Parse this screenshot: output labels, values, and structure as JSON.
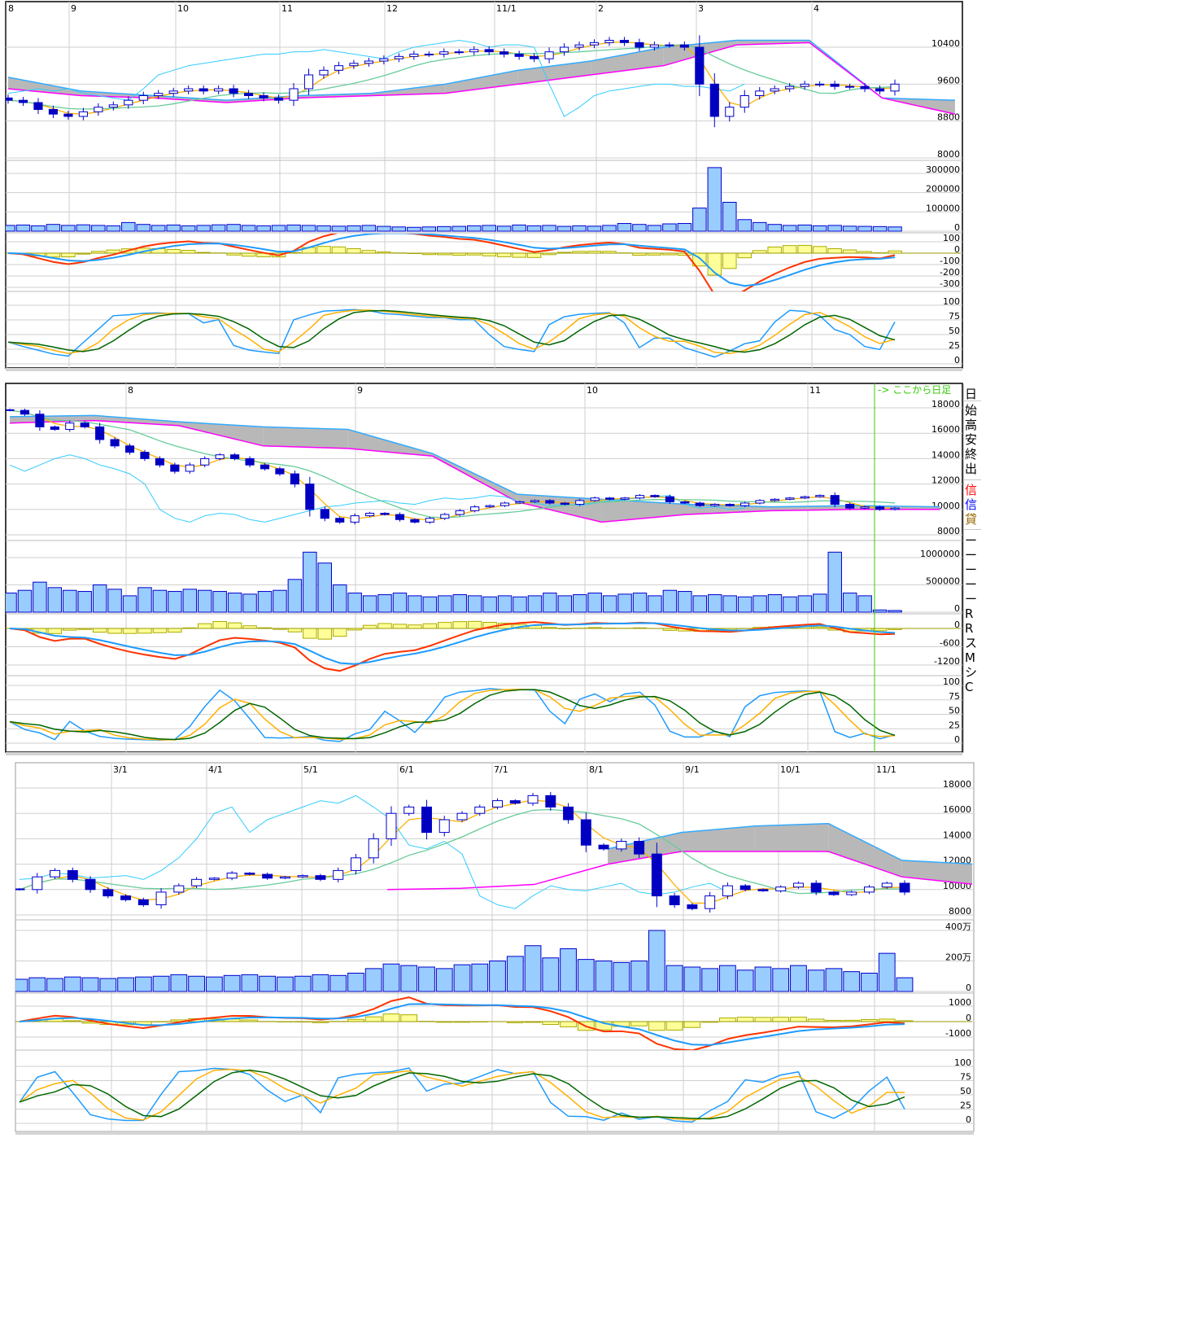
{
  "chart_data": [
    {
      "type": "candlestick",
      "x_labels": [
        "8",
        "9",
        "10",
        "11",
        "12",
        "11/1",
        "2",
        "3",
        "4"
      ],
      "y_ticks": {
        "price": [
          "10400",
          "9600",
          "8800",
          "8000"
        ],
        "volume": [
          "300000",
          "200000",
          "100000",
          "0"
        ],
        "macd": [
          "100",
          "0",
          "-100",
          "-200",
          "-300"
        ],
        "stoch": [
          "100",
          "75",
          "50",
          "25",
          "0"
        ]
      },
      "close": [
        9250,
        9200,
        9050,
        8950,
        8900,
        9000,
        9100,
        9150,
        9250,
        9350,
        9400,
        9450,
        9500,
        9450,
        9500,
        9400,
        9350,
        9300,
        9250,
        9500,
        9800,
        9900,
        10000,
        10050,
        10100,
        10150,
        10200,
        10250,
        10250,
        10300,
        10300,
        10350,
        10300,
        10250,
        10200,
        10150,
        10300,
        10400,
        10450,
        10500,
        10550,
        10500,
        10400,
        10450,
        10450,
        10400,
        9600,
        8900,
        9100,
        9350,
        9450,
        9500,
        9550,
        9600,
        9600,
        9550,
        9550,
        9500,
        9450,
        9600
      ],
      "volume": [
        30000,
        32000,
        28000,
        35000,
        30000,
        33000,
        30000,
        28000,
        45000,
        35000,
        30000,
        32000,
        28000,
        30000,
        33000,
        35000,
        30000,
        28000,
        30000,
        32000,
        30000,
        28000,
        26000,
        28000,
        30000,
        25000,
        22000,
        20000,
        22000,
        24000,
        25000,
        28000,
        30000,
        26000,
        32000,
        28000,
        30000,
        25000,
        28000,
        26000,
        30000,
        40000,
        35000,
        30000,
        38000,
        40000,
        120000,
        330000,
        150000,
        60000,
        45000,
        35000,
        30000,
        32000,
        28000,
        30000,
        26000,
        25000,
        24000,
        22000
      ],
      "cloud_span_a": [
        9750,
        9450,
        9350,
        9250,
        9350,
        9400,
        9600,
        9900,
        10100,
        10400,
        10550,
        10550,
        9300,
        9250
      ],
      "cloud_span_b": [
        9500,
        9350,
        9300,
        9200,
        9300,
        9350,
        9400,
        9600,
        9800,
        10000,
        10450,
        10500,
        9300,
        8950
      ],
      "cloud_lead_periods": 4
    },
    {
      "type": "candlestick",
      "x_labels": [
        "8",
        "9",
        "10",
        "11"
      ],
      "y_ticks": {
        "price": [
          "18000",
          "16000",
          "14000",
          "12000",
          "10000",
          "8000"
        ],
        "volume": [
          "1000000",
          "500000",
          "0"
        ],
        "macd": [
          "0",
          "-600",
          "-1200"
        ],
        "stoch": [
          "100",
          "75",
          "50",
          "25",
          "0"
        ]
      },
      "close": [
        17800,
        17500,
        16500,
        16300,
        16800,
        16500,
        15500,
        15000,
        14500,
        14000,
        13500,
        13000,
        13500,
        14000,
        14300,
        14000,
        13500,
        13200,
        12800,
        12000,
        10000,
        9300,
        9000,
        9500,
        9700,
        9600,
        9200,
        9000,
        9300,
        9600,
        9900,
        10200,
        10300,
        10500,
        10600,
        10700,
        10500,
        10400,
        10700,
        10900,
        10800,
        10900,
        11100,
        11000,
        10600,
        10500,
        10300,
        10400,
        10300,
        10500,
        10700,
        10800,
        10900,
        11000,
        11100,
        10400,
        10100,
        10200,
        10000,
        10100
      ],
      "volume": [
        350000,
        400000,
        550000,
        450000,
        400000,
        380000,
        500000,
        420000,
        300000,
        450000,
        400000,
        380000,
        420000,
        400000,
        380000,
        350000,
        330000,
        380000,
        400000,
        600000,
        1100000,
        900000,
        500000,
        350000,
        300000,
        320000,
        350000,
        300000,
        280000,
        300000,
        320000,
        300000,
        280000,
        300000,
        280000,
        300000,
        350000,
        300000,
        320000,
        350000,
        300000,
        330000,
        350000,
        300000,
        400000,
        380000,
        300000,
        320000,
        300000,
        280000,
        300000,
        320000,
        280000,
        300000,
        330000,
        1100000,
        350000,
        300000,
        40000,
        30000
      ],
      "cloud_span_a": [
        17300,
        17400,
        16900,
        16500,
        16300,
        14400,
        11200,
        10800,
        10400,
        10200,
        10300,
        10200
      ],
      "cloud_span_b": [
        16800,
        17000,
        16600,
        15000,
        14800,
        14200,
        10600,
        9000,
        9600,
        9900,
        10000,
        10000
      ],
      "cloud_lead_periods": 3,
      "annotation": "-> ここから日足"
    },
    {
      "type": "candlestick",
      "x_labels": [
        "3/1",
        "4/1",
        "5/1",
        "6/1",
        "7/1",
        "8/1",
        "9/1",
        "10/1",
        "11/1"
      ],
      "y_ticks": {
        "price": [
          "18000",
          "16000",
          "14000",
          "12000",
          "10000",
          "8000"
        ],
        "volume": [
          "400万",
          "200万",
          "0"
        ],
        "macd": [
          "1000",
          "0",
          "-1000"
        ],
        "stoch": [
          "100",
          "75",
          "50",
          "25",
          "0"
        ]
      },
      "close": [
        10000,
        11000,
        11500,
        10800,
        10000,
        9500,
        9200,
        8800,
        9800,
        10300,
        10800,
        10900,
        11300,
        11200,
        10900,
        11000,
        11100,
        10800,
        11500,
        12500,
        14000,
        16000,
        16500,
        14500,
        15500,
        16000,
        16500,
        17000,
        16800,
        17400,
        16500,
        15500,
        13500,
        13200,
        13800,
        12800,
        9500,
        8800,
        8500,
        9500,
        10300,
        10000,
        9900,
        10200,
        10500,
        9800,
        9600,
        9800,
        10200,
        10500,
        9800
      ],
      "volume": [
        80,
        90,
        85,
        95,
        90,
        85,
        90,
        95,
        100,
        110,
        100,
        95,
        105,
        110,
        100,
        95,
        100,
        110,
        105,
        120,
        150,
        180,
        170,
        160,
        150,
        175,
        180,
        200,
        230,
        300,
        220,
        280,
        210,
        200,
        190,
        200,
        400,
        170,
        160,
        150,
        170,
        140,
        160,
        150,
        170,
        140,
        150,
        130,
        120,
        250,
        90
      ],
      "volume_unit": "万",
      "cloud_span_a": [
        null,
        null,
        null,
        null,
        null,
        null,
        null,
        null,
        13200,
        14500,
        15000,
        15200,
        12300,
        12000
      ],
      "cloud_span_b": [
        null,
        null,
        null,
        null,
        null,
        10000,
        10100,
        10400,
        12000,
        13000,
        13000,
        13000,
        11000,
        10400
      ],
      "cloud_lead_periods": 4
    }
  ],
  "colors": {
    "up_candle_border": "#0000cc",
    "down_candle": "#0000c0",
    "volume_fill": "#99ccff",
    "volume_border": "#0000cc",
    "cloud_light": "#b8b8b8",
    "cloud_dark": "#808080",
    "span_a": "#33aaff",
    "span_b": "#ff00ff",
    "lagging": "#33ccff",
    "ma_short": "#ffb000",
    "ma_long": "#66cc99",
    "macd": "#ff3300",
    "signal": "#1e9bff",
    "histogram": "#ffff99",
    "histogram_border": "#aaaa00",
    "stoch_k": "#1e9bff",
    "stoch_d": "#ffb000",
    "stoch_slow": "#006600",
    "daily_marker": "#33cc00"
  },
  "side_panel": {
    "items": [
      {
        "text": "日",
        "color": "#000000"
      },
      {
        "text": "始",
        "color": "#000000"
      },
      {
        "text": "高",
        "color": "#000000"
      },
      {
        "text": "安",
        "color": "#000000"
      },
      {
        "text": "終",
        "color": "#000000"
      },
      {
        "text": "出",
        "color": "#000000"
      },
      {
        "text": "信",
        "color": "#ff0000"
      },
      {
        "text": "信",
        "color": "#0000ff"
      },
      {
        "text": "貸",
        "color": "#996600"
      },
      {
        "text": "ー",
        "color": "#000000"
      },
      {
        "text": "ー",
        "color": "#000000"
      },
      {
        "text": "ー",
        "color": "#000000"
      },
      {
        "text": "ー",
        "color": "#000000"
      },
      {
        "text": "ー",
        "color": "#000000"
      },
      {
        "text": "R",
        "color": "#000000"
      },
      {
        "text": "R",
        "color": "#000000"
      },
      {
        "text": "ス",
        "color": "#000000"
      },
      {
        "text": "M",
        "color": "#000000"
      },
      {
        "text": "シ",
        "color": "#000000"
      },
      {
        "text": "C",
        "color": "#000000"
      }
    ]
  }
}
